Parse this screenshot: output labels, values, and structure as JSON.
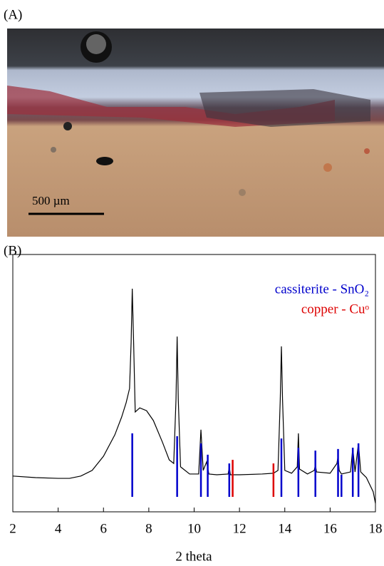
{
  "panels": {
    "a": {
      "label": "(A)",
      "scale_bar": "500 µm"
    },
    "b": {
      "label": "(B)"
    }
  },
  "chart_data": {
    "type": "line",
    "color": "#000000",
    "xlabel": "2 theta",
    "x": [
      2,
      3,
      4,
      4.5,
      5,
      5.5,
      6,
      6.5,
      6.8,
      7.0,
      7.15,
      7.22,
      7.27,
      7.33,
      7.4,
      7.6,
      7.9,
      8.2,
      8.6,
      8.9,
      9.1,
      9.2,
      9.25,
      9.3,
      9.4,
      9.8,
      10.2,
      10.3,
      10.4,
      10.55,
      10.65,
      11,
      11.5,
      11.55,
      11.6,
      12,
      13,
      13.5,
      13.7,
      13.8,
      13.85,
      13.9,
      14.0,
      14.3,
      14.55,
      14.6,
      14.65,
      15,
      15.3,
      15.35,
      15.4,
      16,
      16.3,
      16.35,
      16.4,
      16.5,
      16.9,
      17.0,
      17.1,
      17.25,
      17.35,
      17.6,
      17.9,
      18
    ],
    "values": [
      13.9,
      13.3,
      13.0,
      13.0,
      13.9,
      16.1,
      21.6,
      29.9,
      36.8,
      42.4,
      47.9,
      65.9,
      86.7,
      65.9,
      38.8,
      40.4,
      39.3,
      35.5,
      27.1,
      20.2,
      18.8,
      43.8,
      68.1,
      43.8,
      17.5,
      14.7,
      14.7,
      31.9,
      16.1,
      19.4,
      14.7,
      14.4,
      14.7,
      17.5,
      14.4,
      14.4,
      14.7,
      15.0,
      16.1,
      43.8,
      64.3,
      43.8,
      16.1,
      15.0,
      17.5,
      30.5,
      16.6,
      14.7,
      16.1,
      18.3,
      15.5,
      15.0,
      18.8,
      21.6,
      16.1,
      14.7,
      15.5,
      24.9,
      15.5,
      26.6,
      15.5,
      13.3,
      7.8,
      3.3
    ],
    "references": [
      {
        "name": "cassiterite - SnO₂",
        "color": "#0000cc",
        "positions": [
          7.27,
          9.25,
          10.3,
          10.6,
          11.55,
          13.85,
          14.6,
          15.35,
          16.35,
          16.5,
          17.0,
          17.25
        ],
        "intensities": [
          30.5,
          29.4,
          26.6,
          22.2,
          18.8,
          28.5,
          24.9,
          23.8,
          24.4,
          14.4,
          24.9,
          26.6
        ]
      },
      {
        "name": "copper - Cuᵒ",
        "color": "#dd0000",
        "positions": [
          11.7,
          13.5
        ],
        "intensities": [
          20.2,
          18.8
        ]
      }
    ],
    "xlim": [
      2,
      18
    ],
    "ylim": [
      0,
      100
    ],
    "xticks": [
      2,
      4,
      6,
      8,
      10,
      12,
      14,
      16,
      18
    ]
  }
}
